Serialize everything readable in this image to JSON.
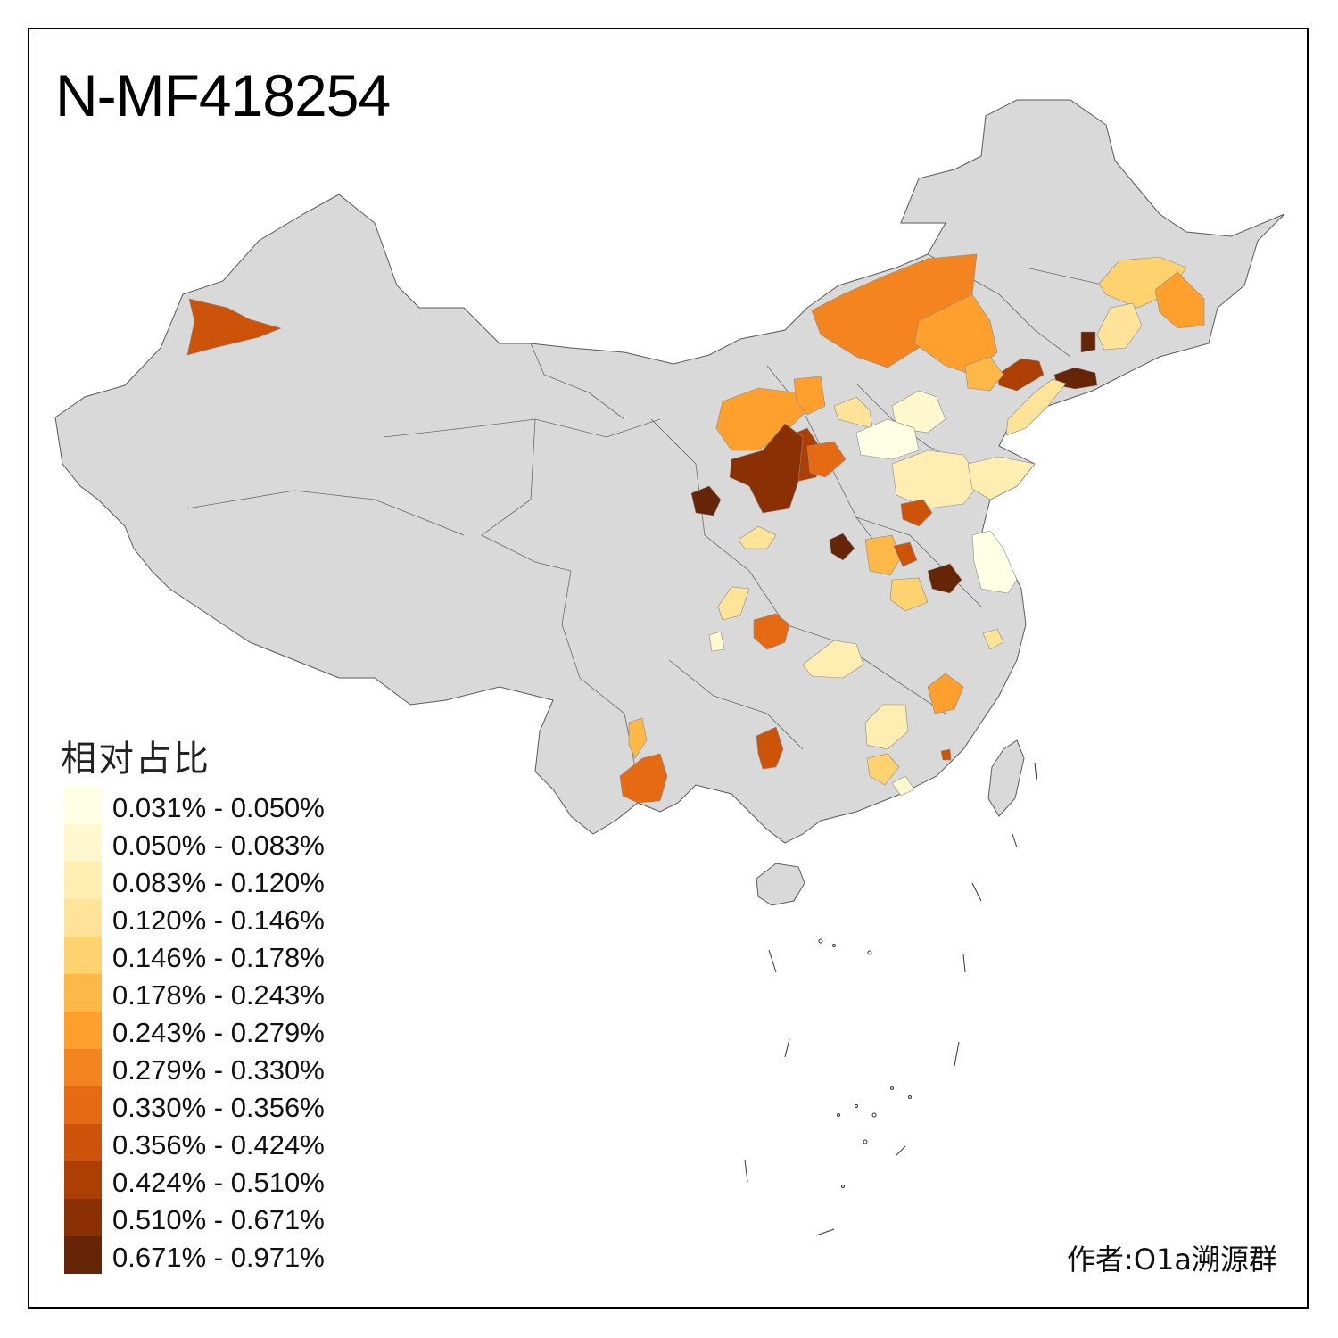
{
  "title": "N-MF418254",
  "legend": {
    "title": "相对占比",
    "items": [
      {
        "label": "0.031% - 0.050%",
        "color": "#FFFFE5"
      },
      {
        "label": "0.050% - 0.083%",
        "color": "#FFF7CD"
      },
      {
        "label": "0.083% - 0.120%",
        "color": "#FFEDB2"
      },
      {
        "label": "0.120% - 0.146%",
        "color": "#FEE398"
      },
      {
        "label": "0.146% - 0.178%",
        "color": "#FED26F"
      },
      {
        "label": "0.178% - 0.243%",
        "color": "#FEB847"
      },
      {
        "label": "0.243% - 0.279%",
        "color": "#FE9F2E"
      },
      {
        "label": "0.279% - 0.330%",
        "color": "#F4841F"
      },
      {
        "label": "0.330% - 0.356%",
        "color": "#E56A13"
      },
      {
        "label": "0.356% - 0.424%",
        "color": "#CE530A"
      },
      {
        "label": "0.424% - 0.510%",
        "color": "#AD3F04"
      },
      {
        "label": "0.510% - 0.671%",
        "color": "#8A3004"
      },
      {
        "label": "0.671% - 0.971%",
        "color": "#662506"
      }
    ]
  },
  "credit": "作者:O1a溯源群",
  "colors": {
    "base_land": "#D9D9D9",
    "border": "#5a5a5a",
    "no_data": "#D9D9D9"
  },
  "highlighted_regions": [
    {
      "name": "xinjiang-northwest-region",
      "bin": 9
    },
    {
      "name": "inner-mongolia-hulunbuir-region",
      "bin": 7
    },
    {
      "name": "inner-mongolia-xing-an-region",
      "bin": 6
    },
    {
      "name": "heilongjiang-north-region",
      "bin": 4
    },
    {
      "name": "heilongjiang-east-region",
      "bin": 6
    },
    {
      "name": "jilin-region-1",
      "bin": 3
    },
    {
      "name": "jilin-region-2",
      "bin": 12
    },
    {
      "name": "liaoning-north-region",
      "bin": 10
    },
    {
      "name": "liaoning-east-region",
      "bin": 12
    },
    {
      "name": "liaoning-west-region",
      "bin": 5
    },
    {
      "name": "liaoning-south-region",
      "bin": 3
    },
    {
      "name": "inner-mongolia-ordos-region",
      "bin": 6
    },
    {
      "name": "inner-mongolia-baotou-region",
      "bin": 6
    },
    {
      "name": "shaanxi-north-region",
      "bin": 10
    },
    {
      "name": "shaanxi-central-region",
      "bin": 11
    },
    {
      "name": "shanxi-west-region",
      "bin": 8
    },
    {
      "name": "ningxia-region",
      "bin": 12
    },
    {
      "name": "hebei-north-region",
      "bin": 3
    },
    {
      "name": "beijing-tianjin-region",
      "bin": 1
    },
    {
      "name": "hebei-central-region",
      "bin": 0
    },
    {
      "name": "shandong-region",
      "bin": 2
    },
    {
      "name": "shandong-east-region",
      "bin": 2
    },
    {
      "name": "henan-north-region",
      "bin": 9
    },
    {
      "name": "henan-west-region",
      "bin": 12
    },
    {
      "name": "henan-central-region",
      "bin": 5
    },
    {
      "name": "henan-east-region",
      "bin": 9
    },
    {
      "name": "anhui-north-region",
      "bin": 12
    },
    {
      "name": "jiangsu-region",
      "bin": 0
    },
    {
      "name": "anhui-south-region",
      "bin": 4
    },
    {
      "name": "zhejiang-region",
      "bin": 3
    },
    {
      "name": "gansu-south-region",
      "bin": 3
    },
    {
      "name": "sichuan-north-region",
      "bin": 3
    },
    {
      "name": "sichuan-central-region",
      "bin": 1
    },
    {
      "name": "chongqing-region",
      "bin": 8
    },
    {
      "name": "hubei-region",
      "bin": 2
    },
    {
      "name": "jiangxi-region",
      "bin": 6
    },
    {
      "name": "jiangxi-south-region",
      "bin": 2
    },
    {
      "name": "guangdong-north-region",
      "bin": 4
    },
    {
      "name": "guangdong-central-region",
      "bin": 1
    },
    {
      "name": "guizhou-region",
      "bin": 9
    },
    {
      "name": "yunnan-north-region",
      "bin": 5
    },
    {
      "name": "yunnan-central-region",
      "bin": 8
    },
    {
      "name": "fujian-region",
      "bin": 9
    }
  ]
}
